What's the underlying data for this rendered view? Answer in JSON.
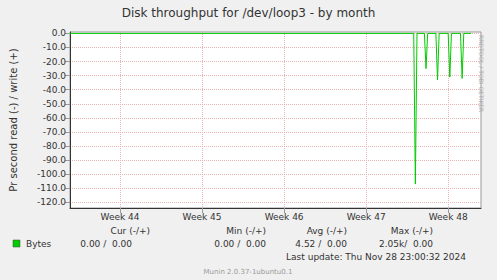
{
  "chart_data": {
    "type": "line",
    "title": "Disk throughput for /dev/loop3 - by month",
    "y_label": "Pr second read (-) / write (+)",
    "x": [
      43.39,
      47.58,
      47.6,
      47.62,
      47.71,
      47.73,
      47.75,
      47.85,
      47.87,
      47.89,
      48.0,
      48.02,
      48.04,
      48.15,
      48.17,
      48.19,
      48.28
    ],
    "series": [
      {
        "name": "Bytes",
        "color": "#00cc00",
        "values": [
          0,
          0,
          -107,
          0,
          0,
          -25,
          0,
          0,
          -33,
          0,
          0,
          -31,
          0,
          0,
          -32,
          0,
          0
        ]
      }
    ],
    "xlim": [
      43.39,
      48.4
    ],
    "xticks": [
      {
        "value": 44,
        "label": "Week 44"
      },
      {
        "value": 45,
        "label": "Week 45"
      },
      {
        "value": 46,
        "label": "Week 46"
      },
      {
        "value": 47,
        "label": "Week 47"
      },
      {
        "value": 48,
        "label": "Week 48"
      }
    ],
    "ylim": [
      -124,
      1
    ],
    "yticks": [
      {
        "value": 0,
        "label": "0.0"
      },
      {
        "value": -10,
        "label": "-10.0"
      },
      {
        "value": -20,
        "label": "-20.0"
      },
      {
        "value": -30,
        "label": "-30.0"
      },
      {
        "value": -40,
        "label": "-40.0"
      },
      {
        "value": -50,
        "label": "-50.0"
      },
      {
        "value": -60,
        "label": "-60.0"
      },
      {
        "value": -70,
        "label": "-70.0"
      },
      {
        "value": -80,
        "label": "-80.0"
      },
      {
        "value": -90,
        "label": "-90.0"
      },
      {
        "value": -100,
        "label": "-100.0"
      },
      {
        "value": -110,
        "label": "-110.0"
      },
      {
        "value": -120,
        "label": "-120.0"
      }
    ],
    "grid": true,
    "legend_table": {
      "headers": [
        "Cur (-/+)",
        "Min (-/+)",
        "Avg (-/+)",
        "Max (-/+)"
      ],
      "rows": [
        {
          "name": "Bytes",
          "color": "#00cc00",
          "cells": [
            "0.00 /  0.00",
            "0.00 /  0.00",
            "4.52 /  0.00",
            "2.05k/  0.00"
          ]
        }
      ]
    },
    "last_update": "Last update: Thu Nov 28 23:00:32 2024",
    "footer": "Munin 2.0.37-1ubuntu0.1",
    "watermark": "RRDTOOL / TOBI OETIKER"
  }
}
